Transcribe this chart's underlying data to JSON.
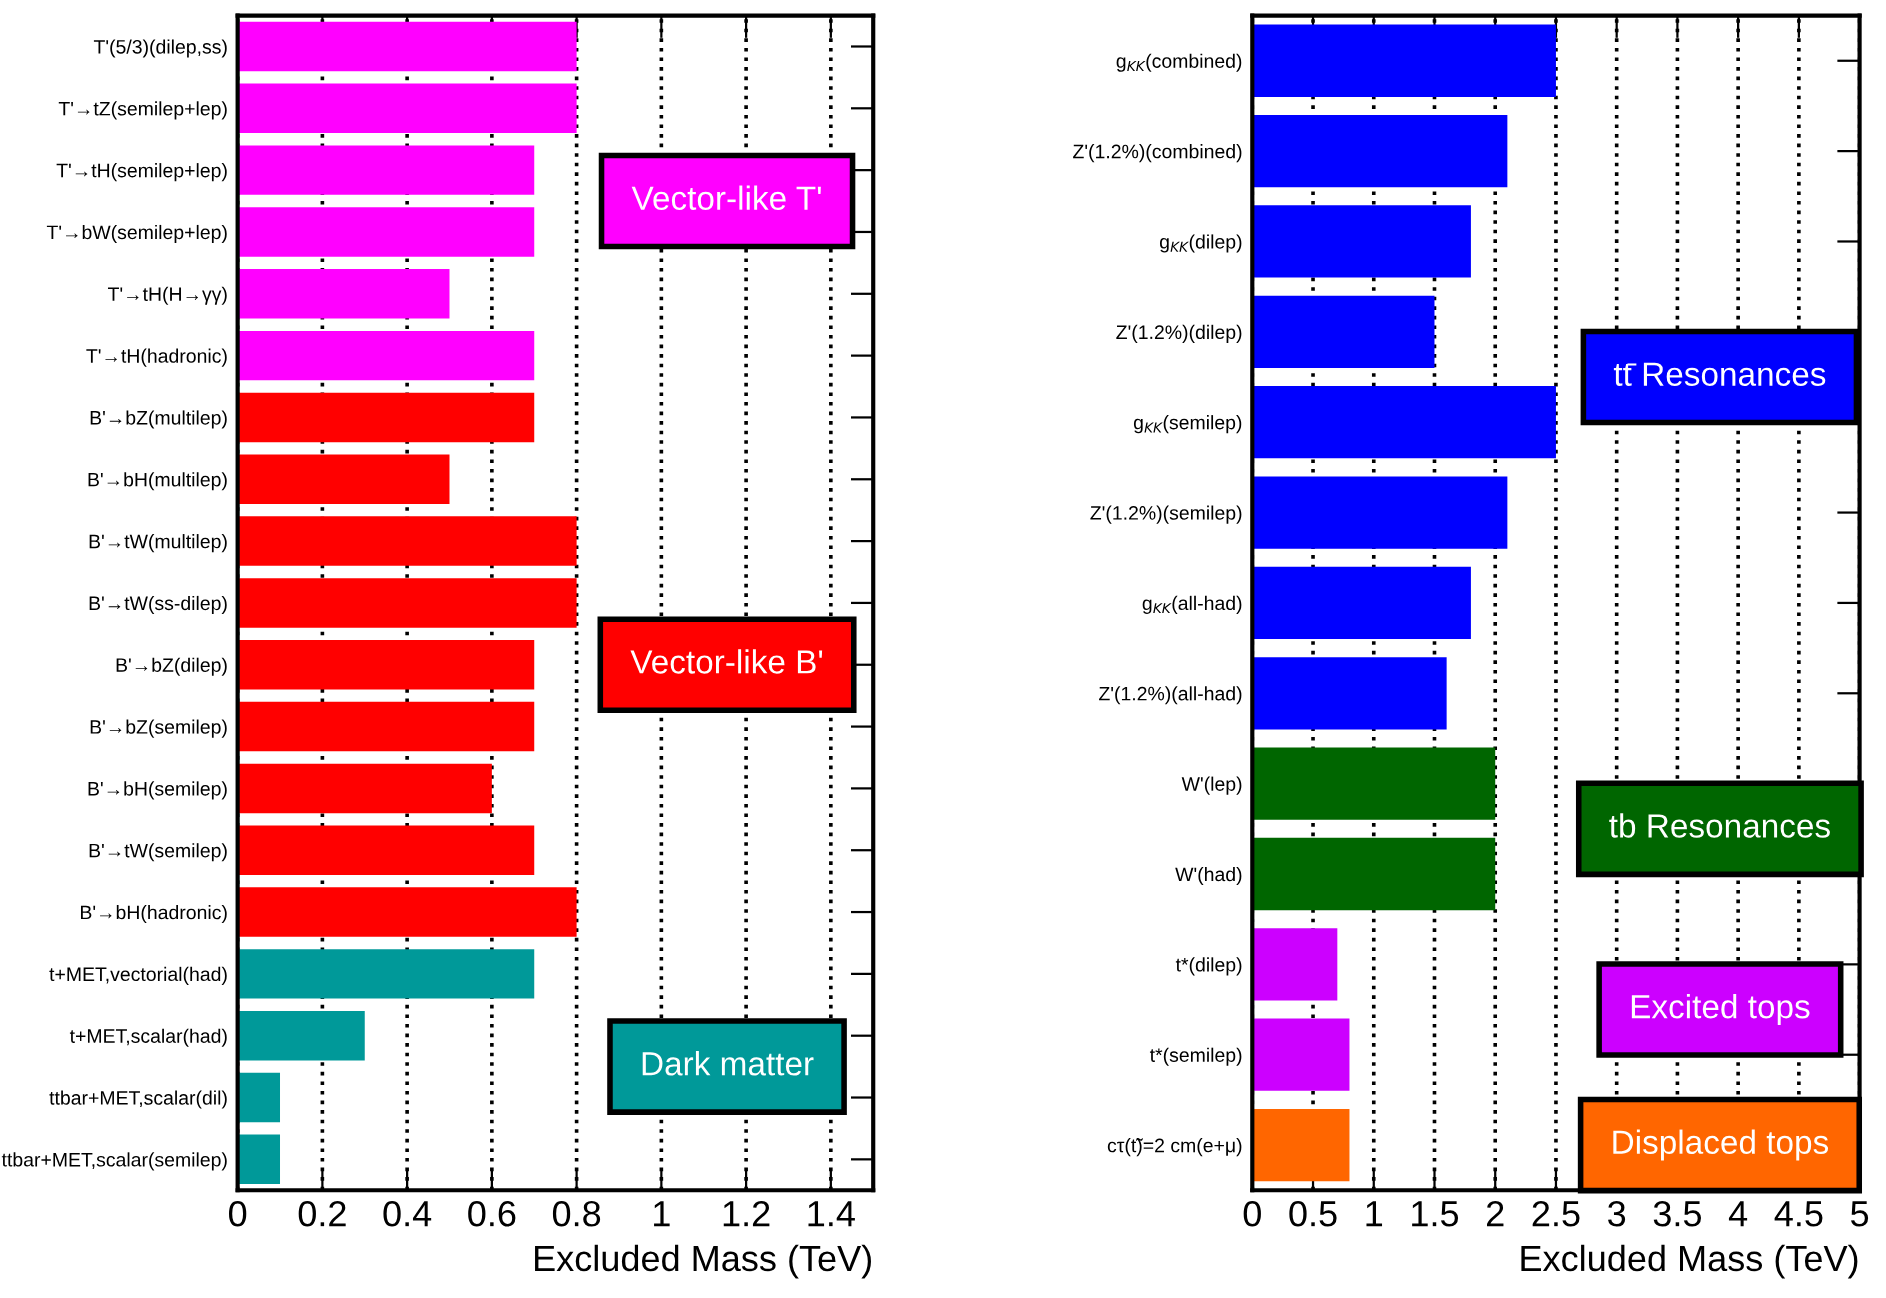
{
  "chart_data": [
    {
      "type": "bar",
      "orientation": "horizontal",
      "xlabel": "Excluded Mass (TeV)",
      "grid": "x",
      "line_style": "dotted",
      "legend": false,
      "categories": [
        "T'(5/3)(dilep,ss)",
        "T'→tZ(semilep+lep)",
        "T'→tH(semilep+lep)",
        "T'→bW(semilep+lep)",
        "T'→tH(H→γγ)",
        "T'→tH(hadronic)",
        "B'→bZ(multilep)",
        "B'→bH(multilep)",
        "B'→tW(multilep)",
        "B'→tW(ss-dilep)",
        "B'→bZ(dilep)",
        "B'→bZ(semilep)",
        "B'→bH(semilep)",
        "B'→tW(semilep)",
        "B'→bH(hadronic)",
        "t+MET,vectorial(had)",
        "t+MET,scalar(had)",
        "ttbar+MET,scalar(dil)",
        "ttbar+MET,scalar(semilep)"
      ],
      "series": [
        {
          "name": "Vector-like T'",
          "color": "#ff00ff",
          "values": [
            0.8,
            0.8,
            0.7,
            0.7,
            0.5,
            0.7,
            null,
            null,
            null,
            null,
            null,
            null,
            null,
            null,
            null,
            null,
            null,
            null,
            null
          ]
        },
        {
          "name": "Vector-like B'",
          "color": "#ff0000",
          "values": [
            null,
            null,
            null,
            null,
            null,
            null,
            0.7,
            0.5,
            0.8,
            0.8,
            0.7,
            0.7,
            0.6,
            0.7,
            0.8,
            null,
            null,
            null,
            null
          ]
        },
        {
          "name": "Dark matter",
          "color": "#009999",
          "values": [
            null,
            null,
            null,
            null,
            null,
            null,
            null,
            null,
            null,
            null,
            null,
            null,
            null,
            null,
            null,
            0.7,
            0.3,
            0.1,
            0.1
          ]
        }
      ],
      "xlim": [
        0,
        1.5
      ],
      "xticks": [
        0,
        0.2,
        0.4,
        0.6,
        0.8,
        1,
        1.2,
        1.4
      ]
    },
    {
      "type": "bar",
      "orientation": "horizontal",
      "xlabel": "Excluded Mass (TeV)",
      "grid": "x",
      "line_style": "dotted",
      "legend": false,
      "categories": [
        "g$_{KK}$(combined)",
        "Z'(1.2%)(combined)",
        "g$_{KK}$(dilep)",
        "Z'(1.2%)(dilep)",
        "g$_{KK}$(semilep)",
        "Z'(1.2%)(semilep)",
        "g$_{KK}$(all-had)",
        "Z'(1.2%)(all-had)",
        "W'(lep)",
        "W'(had)",
        "t*(dilep)",
        "t*(semilep)",
        "cτ(t̃)=2 cm(e+μ)"
      ],
      "series": [
        {
          "name": "tt̄ Resonances",
          "color": "#0000ff",
          "values": [
            2.5,
            2.1,
            1.8,
            1.5,
            2.5,
            2.1,
            1.8,
            1.6,
            null,
            null,
            null,
            null,
            null
          ]
        },
        {
          "name": "tb Resonances",
          "color": "#006600",
          "values": [
            null,
            null,
            null,
            null,
            null,
            null,
            null,
            null,
            2.0,
            2.0,
            null,
            null,
            null
          ]
        },
        {
          "name": "Excited tops",
          "color": "#cc00ff",
          "values": [
            null,
            null,
            null,
            null,
            null,
            null,
            null,
            null,
            null,
            null,
            0.7,
            0.8,
            null
          ]
        },
        {
          "name": "Displaced tops",
          "color": "#ff6600",
          "values": [
            null,
            null,
            null,
            null,
            null,
            null,
            null,
            null,
            null,
            null,
            null,
            null,
            0.8
          ]
        }
      ],
      "xlim": [
        0,
        5
      ],
      "xticks": [
        0,
        0.5,
        1,
        1.5,
        2,
        2.5,
        3,
        3.5,
        4,
        4.5,
        5
      ]
    }
  ]
}
